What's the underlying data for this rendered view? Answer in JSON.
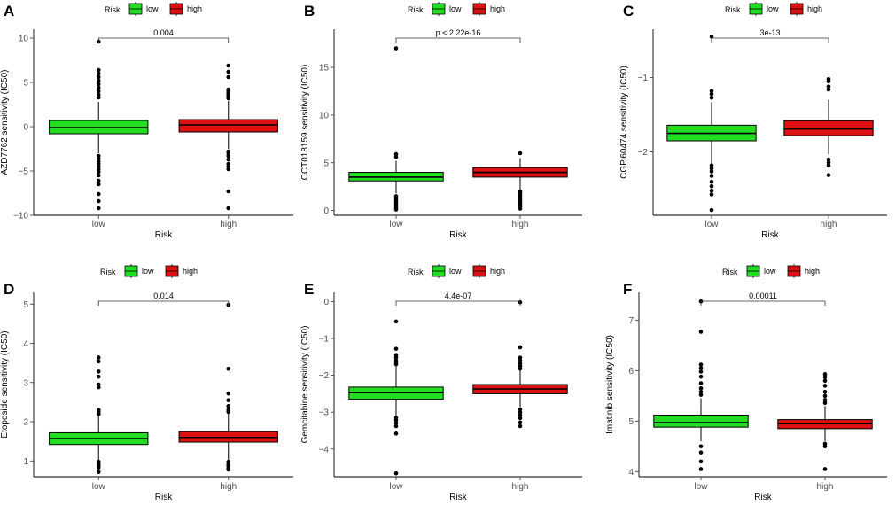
{
  "figure": {
    "legend_title": "Risk",
    "xlabel": "Risk",
    "categories": [
      "low",
      "high"
    ],
    "colors": {
      "low": "#22dd22",
      "high": "#dd1111"
    }
  },
  "chart_data": [
    {
      "type": "box",
      "panel": "A",
      "ylabel": "AZD7762 sensitivity (IC50)",
      "ylim": [
        -10,
        11
      ],
      "yticks": [
        -10,
        -5,
        0,
        5,
        10
      ],
      "pvalue": "0.004",
      "boxes": [
        {
          "group": "low",
          "q1": -0.8,
          "median": -0.1,
          "q3": 0.7,
          "whisker_low": -3.0,
          "whisker_high": 2.8,
          "outliers": [
            9.6,
            6.4,
            6.0,
            5.6,
            5.2,
            4.8,
            4.4,
            4.0,
            3.6,
            3.3,
            -3.3,
            -3.6,
            -3.9,
            -4.2,
            -4.5,
            -4.8,
            -5.1,
            -5.5,
            -6.1,
            -6.5,
            -7.6,
            -8.4,
            -9.2
          ]
        },
        {
          "group": "high",
          "q1": -0.6,
          "median": 0.2,
          "q3": 0.8,
          "whisker_low": -2.5,
          "whisker_high": 2.9,
          "outliers": [
            6.9,
            6.2,
            5.6,
            4.2,
            4.0,
            3.8,
            3.6,
            3.4,
            3.2,
            -2.8,
            -3.0,
            -3.3,
            -3.7,
            -4.2,
            -4.5,
            -4.8,
            -7.3,
            -9.2
          ]
        }
      ]
    },
    {
      "type": "box",
      "panel": "B",
      "ylabel": "CCT018159 sensitivity (IC50)",
      "ylim": [
        -0.5,
        19
      ],
      "yticks": [
        0,
        5,
        10,
        15
      ],
      "pvalue": "p < 2.22e-16",
      "boxes": [
        {
          "group": "low",
          "q1": 3.1,
          "median": 3.5,
          "q3": 4.0,
          "whisker_low": 1.8,
          "whisker_high": 5.2,
          "outliers": [
            17.0,
            5.9,
            5.6,
            1.5,
            1.3,
            1.1,
            0.9,
            0.7,
            0.5,
            0.3,
            0.1
          ]
        },
        {
          "group": "high",
          "q1": 3.5,
          "median": 4.0,
          "q3": 4.5,
          "whisker_low": 2.2,
          "whisker_high": 5.5,
          "outliers": [
            6.0,
            2.0,
            1.8,
            1.6,
            1.4,
            1.2,
            1.0,
            0.8,
            0.6,
            0.4,
            0.2
          ]
        }
      ]
    },
    {
      "type": "box",
      "panel": "C",
      "ylabel": "CGP.60474 sensitivity (IC50)",
      "ylim": [
        -2.85,
        -0.35
      ],
      "yticks": [
        -2,
        -1
      ],
      "pvalue": "3e-13",
      "boxes": [
        {
          "group": "low",
          "q1": -1.85,
          "median": -1.75,
          "q3": -1.64,
          "whisker_low": -2.15,
          "whisker_high": -1.33,
          "outliers": [
            -0.45,
            -1.18,
            -1.22,
            -1.27,
            -2.18,
            -2.22,
            -2.26,
            -2.32,
            -2.4,
            -2.46,
            -2.52,
            -2.57,
            -2.78
          ]
        },
        {
          "group": "high",
          "q1": -1.78,
          "median": -1.69,
          "q3": -1.58,
          "whisker_low": -2.03,
          "whisker_high": -1.3,
          "outliers": [
            -1.02,
            -1.05,
            -1.12,
            -1.16,
            -2.1,
            -2.14,
            -2.18,
            -2.31
          ]
        }
      ]
    },
    {
      "type": "box",
      "panel": "D",
      "ylabel": "Etoposide sensitivity (IC50)",
      "ylim": [
        0.6,
        5.3
      ],
      "yticks": [
        1,
        2,
        3,
        4,
        5
      ],
      "pvalue": "0.014",
      "boxes": [
        {
          "group": "low",
          "q1": 1.42,
          "median": 1.57,
          "q3": 1.72,
          "whisker_low": 1.0,
          "whisker_high": 2.15,
          "outliers": [
            3.64,
            3.54,
            3.28,
            3.15,
            2.95,
            2.88,
            2.3,
            2.25,
            2.2,
            0.98,
            0.92,
            0.88,
            0.83,
            0.72
          ]
        },
        {
          "group": "high",
          "q1": 1.48,
          "median": 1.6,
          "q3": 1.75,
          "whisker_low": 1.0,
          "whisker_high": 2.2,
          "outliers": [
            4.98,
            3.35,
            2.72,
            2.55,
            2.4,
            2.3,
            2.25,
            0.98,
            0.92,
            0.88,
            0.82,
            0.78
          ]
        }
      ]
    },
    {
      "type": "box",
      "panel": "E",
      "ylabel": "Gemcitabine sensitivity (IC50)",
      "ylim": [
        -4.75,
        0.25
      ],
      "yticks": [
        -4,
        -3,
        -2,
        -1,
        0
      ],
      "pvalue": "4.4e-07",
      "boxes": [
        {
          "group": "low",
          "q1": -2.65,
          "median": -2.47,
          "q3": -2.32,
          "whisker_low": -3.15,
          "whisker_high": -1.75,
          "outliers": [
            -0.54,
            -1.28,
            -1.45,
            -1.52,
            -1.6,
            -1.65,
            -1.7,
            -3.15,
            -3.22,
            -3.3,
            -3.38,
            -3.58,
            -4.66
          ]
        },
        {
          "group": "high",
          "q1": -2.5,
          "median": -2.37,
          "q3": -2.25,
          "whisker_low": -2.85,
          "whisker_high": -1.85,
          "outliers": [
            -0.02,
            -1.24,
            -1.52,
            -1.6,
            -1.68,
            -1.75,
            -1.82,
            -2.92,
            -3.0,
            -3.08,
            -3.16,
            -3.28,
            -3.38
          ]
        }
      ]
    },
    {
      "type": "box",
      "panel": "F",
      "ylabel": "Imatinib sensitivity (IC50)",
      "ylim": [
        3.9,
        7.55
      ],
      "yticks": [
        4,
        5,
        6,
        7
      ],
      "pvalue": "0.00011",
      "boxes": [
        {
          "group": "low",
          "q1": 4.88,
          "median": 4.97,
          "q3": 5.12,
          "whisker_low": 4.6,
          "whisker_high": 5.45,
          "outliers": [
            7.37,
            6.77,
            6.12,
            6.05,
            5.98,
            5.88,
            5.75,
            5.65,
            5.58,
            5.52,
            4.5,
            4.38,
            4.2,
            4.05
          ]
        },
        {
          "group": "high",
          "q1": 4.85,
          "median": 4.95,
          "q3": 5.03,
          "whisker_low": 4.6,
          "whisker_high": 5.3,
          "outliers": [
            5.93,
            5.87,
            5.8,
            5.7,
            5.58,
            5.5,
            5.42,
            5.36,
            4.55,
            4.5,
            4.05
          ]
        }
      ]
    }
  ]
}
